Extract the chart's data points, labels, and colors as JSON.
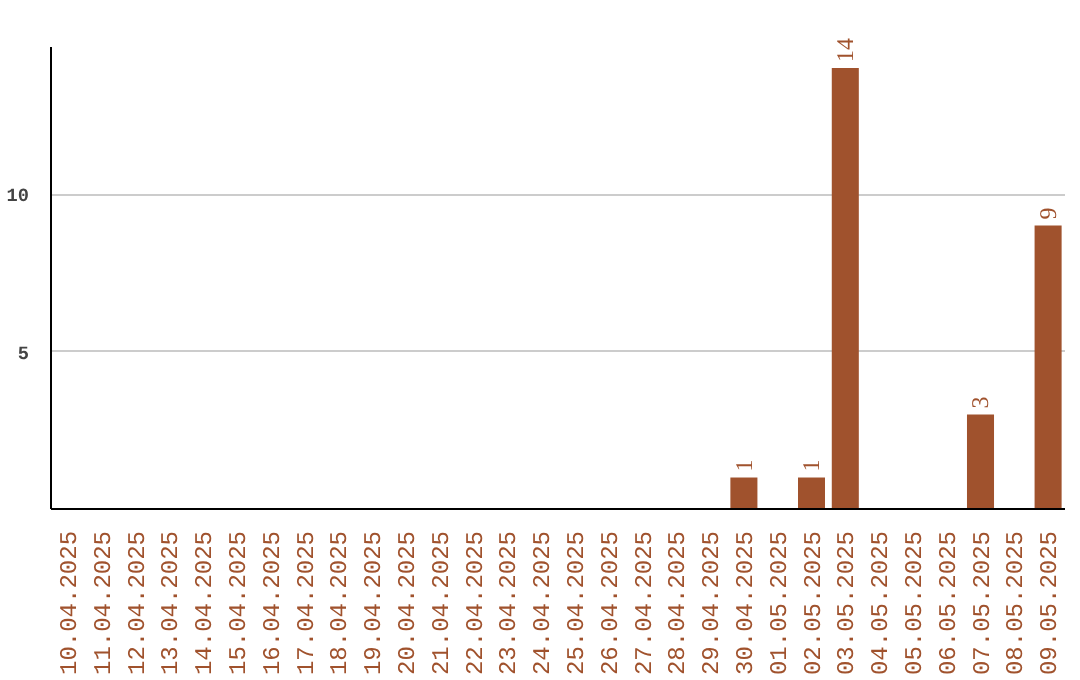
{
  "chart_data": {
    "type": "bar",
    "categories": [
      "10.04.2025",
      "11.04.2025",
      "12.04.2025",
      "13.04.2025",
      "14.04.2025",
      "15.04.2025",
      "16.04.2025",
      "17.04.2025",
      "18.04.2025",
      "19.04.2025",
      "20.04.2025",
      "21.04.2025",
      "22.04.2025",
      "23.04.2025",
      "24.04.2025",
      "25.04.2025",
      "26.04.2025",
      "27.04.2025",
      "28.04.2025",
      "29.04.2025",
      "30.04.2025",
      "01.05.2025",
      "02.05.2025",
      "03.05.2025",
      "04.05.2025",
      "05.05.2025",
      "06.05.2025",
      "07.05.2025",
      "08.05.2025",
      "09.05.2025"
    ],
    "values": [
      0,
      0,
      0,
      0,
      0,
      0,
      0,
      0,
      0,
      0,
      0,
      0,
      0,
      0,
      0,
      0,
      0,
      0,
      0,
      0,
      1,
      0,
      1,
      14,
      0,
      0,
      0,
      3,
      0,
      9
    ],
    "value_labels": [
      null,
      null,
      null,
      null,
      null,
      null,
      null,
      null,
      null,
      null,
      null,
      null,
      null,
      null,
      null,
      null,
      null,
      null,
      null,
      null,
      "1",
      null,
      "1",
      "14",
      null,
      null,
      null,
      "3",
      null,
      "9"
    ],
    "color": "#a0522d",
    "ylim": [
      0,
      14.7
    ],
    "yticks": [
      5,
      10
    ],
    "grid": "y"
  }
}
